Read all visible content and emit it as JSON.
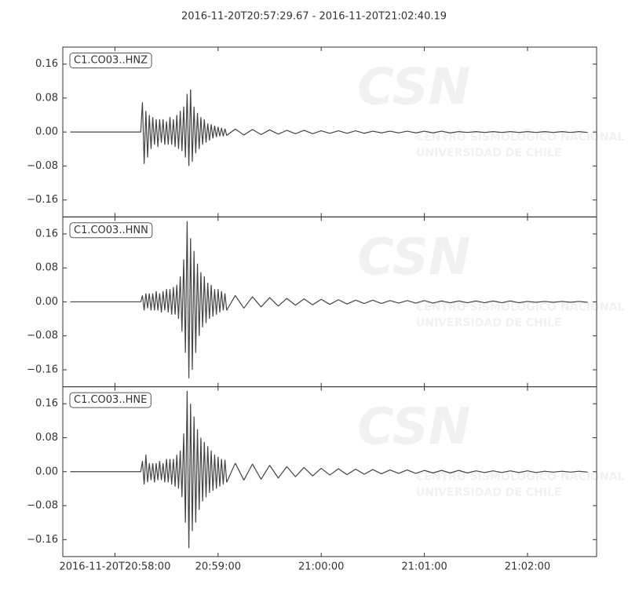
{
  "title": "2016-11-20T20:57:29.67  -  2016-11-20T21:02:40.19",
  "watermark": [
    "CSN",
    "CENTRO SISMOLOGICO NACIONAL",
    "UNIVERSIDAD DE CHILE"
  ],
  "chart_data": [
    {
      "type": "line",
      "label": "C1.CO03..HNZ",
      "color": "#444444",
      "xlim": [
        "2016-11-20T20:57:29.67",
        "2016-11-20T21:02:40.19"
      ],
      "ylim": [
        -0.2,
        0.2
      ],
      "yticks": [
        {
          "value": -0.16,
          "label": "−0.16"
        },
        {
          "value": -0.08,
          "label": "−0.08"
        },
        {
          "value": 0,
          "label": "0.00"
        },
        {
          "value": 0.08,
          "label": "0.08"
        },
        {
          "value": 0.16,
          "label": "0.16"
        }
      ],
      "x": [
        "2016-11-20T20:57:34",
        "2016-11-20T20:58:15",
        "2016-11-20T20:58:16",
        "2016-11-20T20:58:17",
        "2016-11-20T20:58:18",
        "2016-11-20T20:58:19",
        "2016-11-20T20:58:20",
        "2016-11-20T20:58:21",
        "2016-11-20T20:58:22",
        "2016-11-20T20:58:23",
        "2016-11-20T20:58:24",
        "2016-11-20T20:58:25",
        "2016-11-20T20:58:26",
        "2016-11-20T20:58:27",
        "2016-11-20T20:58:28",
        "2016-11-20T20:58:29",
        "2016-11-20T20:58:30",
        "2016-11-20T20:58:31",
        "2016-11-20T20:58:32",
        "2016-11-20T20:58:33",
        "2016-11-20T20:58:34",
        "2016-11-20T20:58:35",
        "2016-11-20T20:58:36",
        "2016-11-20T20:58:37",
        "2016-11-20T20:58:38",
        "2016-11-20T20:58:39",
        "2016-11-20T20:58:40",
        "2016-11-20T20:58:41",
        "2016-11-20T20:58:42",
        "2016-11-20T20:58:43",
        "2016-11-20T20:58:44",
        "2016-11-20T20:58:45",
        "2016-11-20T20:58:46",
        "2016-11-20T20:58:47",
        "2016-11-20T20:58:48",
        "2016-11-20T20:58:49",
        "2016-11-20T20:58:50",
        "2016-11-20T20:58:51",
        "2016-11-20T20:58:52",
        "2016-11-20T20:58:53",
        "2016-11-20T20:58:54",
        "2016-11-20T20:58:55",
        "2016-11-20T20:58:56",
        "2016-11-20T20:58:57",
        "2016-11-20T20:58:58",
        "2016-11-20T20:58:59",
        "2016-11-20T20:59:00",
        "2016-11-20T20:59:01",
        "2016-11-20T20:59:02",
        "2016-11-20T20:59:03",
        "2016-11-20T20:59:04",
        "2016-11-20T20:59:05",
        "2016-11-20T20:59:10",
        "2016-11-20T20:59:15",
        "2016-11-20T20:59:20",
        "2016-11-20T20:59:25",
        "2016-11-20T20:59:30",
        "2016-11-20T20:59:35",
        "2016-11-20T20:59:40",
        "2016-11-20T20:59:45",
        "2016-11-20T20:59:50",
        "2016-11-20T20:59:55",
        "2016-11-20T21:00:00",
        "2016-11-20T21:00:05",
        "2016-11-20T21:00:10",
        "2016-11-20T21:00:15",
        "2016-11-20T21:00:20",
        "2016-11-20T21:00:25",
        "2016-11-20T21:00:30",
        "2016-11-20T21:00:35",
        "2016-11-20T21:00:40",
        "2016-11-20T21:00:45",
        "2016-11-20T21:00:50",
        "2016-11-20T21:00:55",
        "2016-11-20T21:01:00",
        "2016-11-20T21:01:05",
        "2016-11-20T21:01:10",
        "2016-11-20T21:01:15",
        "2016-11-20T21:01:20",
        "2016-11-20T21:01:25",
        "2016-11-20T21:01:30",
        "2016-11-20T21:01:35",
        "2016-11-20T21:01:40",
        "2016-11-20T21:01:45",
        "2016-11-20T21:01:50",
        "2016-11-20T21:01:55",
        "2016-11-20T21:02:00",
        "2016-11-20T21:02:05",
        "2016-11-20T21:02:10",
        "2016-11-20T21:02:15",
        "2016-11-20T21:02:20",
        "2016-11-20T21:02:25",
        "2016-11-20T21:02:30",
        "2016-11-20T21:02:35"
      ],
      "values": [
        0,
        0.0,
        0.07,
        -0.075,
        0.05,
        -0.06,
        0.04,
        -0.04,
        0.035,
        -0.03,
        0.03,
        -0.035,
        0.03,
        -0.025,
        0.03,
        -0.03,
        0.025,
        -0.03,
        0.035,
        -0.03,
        0.03,
        -0.035,
        0.04,
        -0.04,
        0.05,
        -0.045,
        0.06,
        -0.06,
        0.09,
        -0.08,
        0.1,
        -0.07,
        0.06,
        -0.05,
        0.045,
        -0.04,
        0.035,
        -0.03,
        0.03,
        -0.025,
        0.02,
        -0.02,
        0.018,
        -0.015,
        0.015,
        -0.012,
        0.012,
        -0.01,
        0.01,
        -0.01,
        0.008,
        -0.008,
        0.007,
        -0.007,
        0.006,
        -0.006,
        0.005,
        -0.005,
        0.004,
        -0.004,
        0.004,
        -0.004,
        0.003,
        -0.003,
        0.003,
        -0.003,
        0.003,
        -0.003,
        0.002,
        -0.002,
        0.002,
        -0.002,
        0.002,
        -0.002,
        0.002,
        -0.002,
        0.002,
        -0.002,
        0.001,
        -0.001,
        0.001,
        -0.001,
        0.001,
        -0.001,
        0.001,
        -0.001,
        0.001,
        -0.001,
        0.001,
        -0.001,
        0.001,
        -0.001,
        0.001,
        -0.001
      ]
    },
    {
      "type": "line",
      "label": "C1.CO03..HNN",
      "color": "#444444",
      "xlim": [
        "2016-11-20T20:57:29.67",
        "2016-11-20T21:02:40.19"
      ],
      "ylim": [
        -0.2,
        0.2
      ],
      "yticks": [
        {
          "value": -0.16,
          "label": "−0.16"
        },
        {
          "value": -0.08,
          "label": "−0.08"
        },
        {
          "value": 0,
          "label": "0.00"
        },
        {
          "value": 0.08,
          "label": "0.08"
        },
        {
          "value": 0.16,
          "label": "0.16"
        }
      ],
      "x": [
        "2016-11-20T20:57:34",
        "2016-11-20T20:58:15",
        "2016-11-20T20:58:16",
        "2016-11-20T20:58:17",
        "2016-11-20T20:58:18",
        "2016-11-20T20:58:19",
        "2016-11-20T20:58:20",
        "2016-11-20T20:58:21",
        "2016-11-20T20:58:22",
        "2016-11-20T20:58:23",
        "2016-11-20T20:58:24",
        "2016-11-20T20:58:25",
        "2016-11-20T20:58:26",
        "2016-11-20T20:58:27",
        "2016-11-20T20:58:28",
        "2016-11-20T20:58:29",
        "2016-11-20T20:58:30",
        "2016-11-20T20:58:31",
        "2016-11-20T20:58:32",
        "2016-11-20T20:58:33",
        "2016-11-20T20:58:34",
        "2016-11-20T20:58:35",
        "2016-11-20T20:58:36",
        "2016-11-20T20:58:37",
        "2016-11-20T20:58:38",
        "2016-11-20T20:58:39",
        "2016-11-20T20:58:40",
        "2016-11-20T20:58:41",
        "2016-11-20T20:58:42",
        "2016-11-20T20:58:43",
        "2016-11-20T20:58:44",
        "2016-11-20T20:58:45",
        "2016-11-20T20:58:46",
        "2016-11-20T20:58:47",
        "2016-11-20T20:58:48",
        "2016-11-20T20:58:49",
        "2016-11-20T20:58:50",
        "2016-11-20T20:58:51",
        "2016-11-20T20:58:52",
        "2016-11-20T20:58:53",
        "2016-11-20T20:58:54",
        "2016-11-20T20:58:55",
        "2016-11-20T20:58:56",
        "2016-11-20T20:58:57",
        "2016-11-20T20:58:58",
        "2016-11-20T20:58:59",
        "2016-11-20T20:59:00",
        "2016-11-20T20:59:01",
        "2016-11-20T20:59:02",
        "2016-11-20T20:59:03",
        "2016-11-20T20:59:04",
        "2016-11-20T20:59:05",
        "2016-11-20T20:59:10",
        "2016-11-20T20:59:15",
        "2016-11-20T20:59:20",
        "2016-11-20T20:59:25",
        "2016-11-20T20:59:30",
        "2016-11-20T20:59:35",
        "2016-11-20T20:59:40",
        "2016-11-20T20:59:45",
        "2016-11-20T20:59:50",
        "2016-11-20T20:59:55",
        "2016-11-20T21:00:00",
        "2016-11-20T21:00:05",
        "2016-11-20T21:00:10",
        "2016-11-20T21:00:15",
        "2016-11-20T21:00:20",
        "2016-11-20T21:00:25",
        "2016-11-20T21:00:30",
        "2016-11-20T21:00:35",
        "2016-11-20T21:00:40",
        "2016-11-20T21:00:45",
        "2016-11-20T21:00:50",
        "2016-11-20T21:00:55",
        "2016-11-20T21:01:00",
        "2016-11-20T21:01:05",
        "2016-11-20T21:01:10",
        "2016-11-20T21:01:15",
        "2016-11-20T21:01:20",
        "2016-11-20T21:01:25",
        "2016-11-20T21:01:30",
        "2016-11-20T21:01:35",
        "2016-11-20T21:01:40",
        "2016-11-20T21:01:45",
        "2016-11-20T21:01:50",
        "2016-11-20T21:01:55",
        "2016-11-20T21:02:00",
        "2016-11-20T21:02:05",
        "2016-11-20T21:02:10",
        "2016-11-20T21:02:15",
        "2016-11-20T21:02:20",
        "2016-11-20T21:02:25",
        "2016-11-20T21:02:30",
        "2016-11-20T21:02:35"
      ],
      "values": [
        0,
        0.0,
        0.015,
        -0.02,
        0.02,
        -0.015,
        0.02,
        -0.02,
        0.02,
        -0.02,
        0.025,
        -0.02,
        0.02,
        -0.025,
        0.025,
        -0.02,
        0.03,
        -0.025,
        0.03,
        -0.03,
        0.035,
        -0.03,
        0.04,
        -0.04,
        0.06,
        -0.07,
        0.1,
        -0.12,
        0.19,
        -0.18,
        0.15,
        -0.16,
        0.12,
        -0.12,
        0.09,
        -0.08,
        0.07,
        -0.06,
        0.06,
        -0.05,
        0.045,
        -0.04,
        0.04,
        -0.035,
        0.03,
        -0.03,
        0.03,
        -0.025,
        0.025,
        -0.02,
        0.02,
        -0.02,
        0.015,
        -0.015,
        0.012,
        -0.012,
        0.01,
        -0.01,
        0.008,
        -0.008,
        0.007,
        -0.007,
        0.006,
        -0.006,
        0.005,
        -0.005,
        0.004,
        -0.004,
        0.004,
        -0.004,
        0.003,
        -0.003,
        0.003,
        -0.003,
        0.003,
        -0.003,
        0.002,
        -0.002,
        0.002,
        -0.002,
        0.002,
        -0.002,
        0.002,
        -0.002,
        0.002,
        -0.002,
        0.001,
        -0.001,
        0.001,
        -0.001,
        0.001,
        -0.001,
        0.001,
        -0.001
      ]
    },
    {
      "type": "line",
      "label": "C1.CO03..HNE",
      "color": "#444444",
      "xlim": [
        "2016-11-20T20:57:29.67",
        "2016-11-20T21:02:40.19"
      ],
      "ylim": [
        -0.2,
        0.2
      ],
      "yticks": [
        {
          "value": -0.16,
          "label": "−0.16"
        },
        {
          "value": -0.08,
          "label": "−0.08"
        },
        {
          "value": 0,
          "label": "0.00"
        },
        {
          "value": 0.08,
          "label": "0.08"
        },
        {
          "value": 0.16,
          "label": "0.16"
        }
      ],
      "xticks": [
        "2016-11-20T20:58:00",
        {
          "value": "2016-11-20T20:59:00",
          "label": "20:59:00"
        },
        {
          "value": "2016-11-20T21:00:00",
          "label": "21:00:00"
        },
        {
          "value": "2016-11-20T21:01:00",
          "label": "21:01:00"
        },
        {
          "value": "2016-11-20T21:02:00",
          "label": "21:02:00"
        }
      ],
      "x": [
        "2016-11-20T20:57:34",
        "2016-11-20T20:58:15",
        "2016-11-20T20:58:16",
        "2016-11-20T20:58:17",
        "2016-11-20T20:58:18",
        "2016-11-20T20:58:19",
        "2016-11-20T20:58:20",
        "2016-11-20T20:58:21",
        "2016-11-20T20:58:22",
        "2016-11-20T20:58:23",
        "2016-11-20T20:58:24",
        "2016-11-20T20:58:25",
        "2016-11-20T20:58:26",
        "2016-11-20T20:58:27",
        "2016-11-20T20:58:28",
        "2016-11-20T20:58:29",
        "2016-11-20T20:58:30",
        "2016-11-20T20:58:31",
        "2016-11-20T20:58:32",
        "2016-11-20T20:58:33",
        "2016-11-20T20:58:34",
        "2016-11-20T20:58:35",
        "2016-11-20T20:58:36",
        "2016-11-20T20:58:37",
        "2016-11-20T20:58:38",
        "2016-11-20T20:58:39",
        "2016-11-20T20:58:40",
        "2016-11-20T20:58:41",
        "2016-11-20T20:58:42",
        "2016-11-20T20:58:43",
        "2016-11-20T20:58:44",
        "2016-11-20T20:58:45",
        "2016-11-20T20:58:46",
        "2016-11-20T20:58:47",
        "2016-11-20T20:58:48",
        "2016-11-20T20:58:49",
        "2016-11-20T20:58:50",
        "2016-11-20T20:58:51",
        "2016-11-20T20:58:52",
        "2016-11-20T20:58:53",
        "2016-11-20T20:58:54",
        "2016-11-20T20:58:55",
        "2016-11-20T20:58:56",
        "2016-11-20T20:58:57",
        "2016-11-20T20:58:58",
        "2016-11-20T20:58:59",
        "2016-11-20T20:59:00",
        "2016-11-20T20:59:01",
        "2016-11-20T20:59:02",
        "2016-11-20T20:59:03",
        "2016-11-20T20:59:04",
        "2016-11-20T20:59:05",
        "2016-11-20T20:59:10",
        "2016-11-20T20:59:15",
        "2016-11-20T20:59:20",
        "2016-11-20T20:59:25",
        "2016-11-20T20:59:30",
        "2016-11-20T20:59:35",
        "2016-11-20T20:59:40",
        "2016-11-20T20:59:45",
        "2016-11-20T20:59:50",
        "2016-11-20T20:59:55",
        "2016-11-20T21:00:00",
        "2016-11-20T21:00:05",
        "2016-11-20T21:00:10",
        "2016-11-20T21:00:15",
        "2016-11-20T21:00:20",
        "2016-11-20T21:00:25",
        "2016-11-20T21:00:30",
        "2016-11-20T21:00:35",
        "2016-11-20T21:00:40",
        "2016-11-20T21:00:45",
        "2016-11-20T21:00:50",
        "2016-11-20T21:00:55",
        "2016-11-20T21:01:00",
        "2016-11-20T21:01:05",
        "2016-11-20T21:01:10",
        "2016-11-20T21:01:15",
        "2016-11-20T21:01:20",
        "2016-11-20T21:01:25",
        "2016-11-20T21:01:30",
        "2016-11-20T21:01:35",
        "2016-11-20T21:01:40",
        "2016-11-20T21:01:45",
        "2016-11-20T21:01:50",
        "2016-11-20T21:01:55",
        "2016-11-20T21:02:00",
        "2016-11-20T21:02:05",
        "2016-11-20T21:02:10",
        "2016-11-20T21:02:15",
        "2016-11-20T21:02:20",
        "2016-11-20T21:02:25",
        "2016-11-20T21:02:30",
        "2016-11-20T21:02:35"
      ],
      "values": [
        0,
        0.0,
        0.025,
        -0.03,
        0.04,
        -0.025,
        0.02,
        -0.02,
        0.02,
        -0.025,
        0.02,
        -0.02,
        0.025,
        -0.02,
        0.02,
        -0.025,
        0.03,
        -0.025,
        0.03,
        -0.03,
        0.03,
        -0.035,
        0.04,
        -0.04,
        0.05,
        -0.06,
        0.09,
        -0.12,
        0.19,
        -0.18,
        0.16,
        -0.14,
        0.13,
        -0.12,
        0.1,
        -0.09,
        0.08,
        -0.07,
        0.07,
        -0.06,
        0.06,
        -0.05,
        0.05,
        -0.045,
        0.04,
        -0.04,
        0.035,
        -0.035,
        0.03,
        -0.03,
        0.028,
        -0.025,
        0.02,
        -0.02,
        0.018,
        -0.018,
        0.015,
        -0.015,
        0.012,
        -0.012,
        0.01,
        -0.01,
        0.008,
        -0.008,
        0.007,
        -0.007,
        0.006,
        -0.006,
        0.005,
        -0.005,
        0.004,
        -0.004,
        0.004,
        -0.004,
        0.003,
        -0.003,
        0.003,
        -0.003,
        0.003,
        -0.003,
        0.002,
        -0.002,
        0.002,
        -0.002,
        0.002,
        -0.002,
        0.002,
        -0.002,
        0.001,
        -0.001,
        0.001,
        -0.001,
        0.001,
        -0.001
      ]
    }
  ]
}
